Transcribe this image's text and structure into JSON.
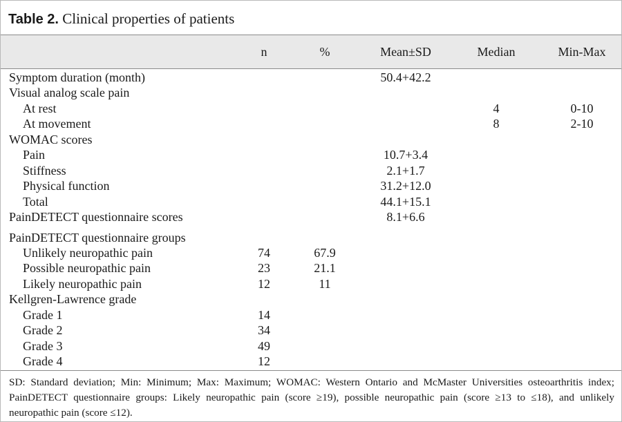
{
  "header": {
    "label": "Table 2.",
    "title": "Clinical properties of patients"
  },
  "table": {
    "columns": [
      "n",
      "%",
      "Mean±SD",
      "Median",
      "Min-Max"
    ],
    "sections": [
      [
        {
          "label": "Symptom duration (month)",
          "values": [
            null,
            null,
            "50.4+42.2",
            null,
            null
          ]
        },
        {
          "label": "Visual analog scale pain",
          "items": [
            {
              "label": "At rest",
              "values": [
                null,
                null,
                null,
                4,
                "0-10"
              ]
            },
            {
              "label": "At movement",
              "values": [
                null,
                null,
                null,
                8,
                "2-10"
              ]
            }
          ]
        },
        {
          "label": "WOMAC scores",
          "items": [
            {
              "label": "Pain",
              "values": [
                null,
                null,
                "10.7+3.4",
                null,
                null
              ]
            },
            {
              "label": "Stiffness",
              "values": [
                null,
                null,
                "2.1+1.7",
                null,
                null
              ]
            },
            {
              "label": "Physical function",
              "values": [
                null,
                null,
                "31.2+12.0",
                null,
                null
              ]
            },
            {
              "label": "Total",
              "values": [
                null,
                null,
                "44.1+15.1",
                null,
                null
              ]
            }
          ]
        },
        {
          "label": "PainDETECT questionnaire scores",
          "values": [
            null,
            null,
            "8.1+6.6",
            null,
            null
          ]
        }
      ],
      [
        {
          "label": "PainDETECT questionnaire groups",
          "items": [
            {
              "label": "Unlikely neuropathic pain",
              "values": [
                74,
                67.9,
                null,
                null,
                null
              ]
            },
            {
              "label": "Possible neuropathic pain",
              "values": [
                23,
                21.1,
                null,
                null,
                null
              ]
            },
            {
              "label": "Likely neuropathic pain",
              "values": [
                12,
                11,
                null,
                null,
                null
              ]
            }
          ]
        },
        {
          "label": "Kellgren-Lawrence grade",
          "items": [
            {
              "label": "Grade 1",
              "values": [
                14,
                null,
                null,
                null,
                null
              ]
            },
            {
              "label": "Grade 2",
              "values": [
                34,
                null,
                null,
                null,
                null
              ]
            },
            {
              "label": "Grade 3",
              "values": [
                49,
                null,
                null,
                null,
                null
              ]
            },
            {
              "label": "Grade 4",
              "values": [
                12,
                null,
                null,
                null,
                null
              ]
            }
          ]
        }
      ]
    ]
  },
  "footnote": "SD: Standard deviation; Min: Minimum; Max: Maximum; WOMAC: Western Ontario and McMaster Universities osteoarthritis index; PainDETECT questionnaire groups: Likely neuropathic pain (score ≥19), possible neuropathic pain (score ≥13 to ≤18), and unlikely neuropathic pain (score ≤12)."
}
